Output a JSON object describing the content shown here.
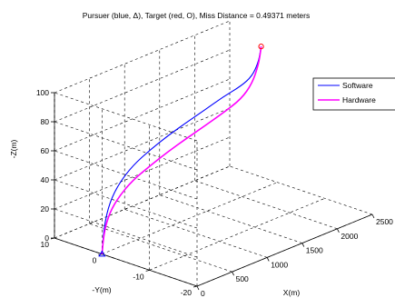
{
  "chart_data": {
    "type": "line",
    "title": "Pursuer (blue, Δ), Target (red, O), Miss Distance = 0.49371 meters",
    "xlabel": "X(m)",
    "ylabel": "-Y(m)",
    "zlabel": "-Z(m)",
    "xlim": [
      0,
      2500
    ],
    "ylim": [
      -20,
      10
    ],
    "zlim": [
      0,
      100
    ],
    "x_ticks": [
      "0",
      "500",
      "1000",
      "1500",
      "2000",
      "2500"
    ],
    "y_ticks": [
      "-20",
      "-10",
      "0",
      "10"
    ],
    "z_ticks": [
      "0",
      "20",
      "40",
      "60",
      "80",
      "100"
    ],
    "grid": true,
    "legend_position": "right",
    "series": [
      {
        "name": "Software",
        "color": "#0000ff",
        "points": [
          [
            0,
            0,
            0
          ],
          [
            50,
            0.3,
            18
          ],
          [
            150,
            0.6,
            32
          ],
          [
            300,
            0.8,
            42
          ],
          [
            500,
            0.9,
            50
          ],
          [
            750,
            0.9,
            56
          ],
          [
            1000,
            0.8,
            61
          ],
          [
            1250,
            0.7,
            65
          ],
          [
            1500,
            0.5,
            69
          ],
          [
            1750,
            0.4,
            73
          ],
          [
            2000,
            0.2,
            76
          ],
          [
            2150,
            0.1,
            80
          ],
          [
            2230,
            0,
            88
          ],
          [
            2260,
            0,
            95
          ],
          [
            2270,
            0,
            98
          ]
        ]
      },
      {
        "name": "Hardware",
        "color": "#ff00ff",
        "points": [
          [
            0,
            0,
            0
          ],
          [
            50,
            0.3,
            14
          ],
          [
            150,
            0.6,
            25
          ],
          [
            300,
            0.8,
            33
          ],
          [
            500,
            0.9,
            40
          ],
          [
            750,
            0.9,
            45
          ],
          [
            1000,
            0.8,
            50
          ],
          [
            1250,
            0.7,
            54
          ],
          [
            1500,
            0.5,
            58
          ],
          [
            1750,
            0.4,
            62
          ],
          [
            2000,
            0.2,
            67
          ],
          [
            2150,
            0.1,
            75
          ],
          [
            2230,
            0,
            86
          ],
          [
            2260,
            0,
            94
          ],
          [
            2270,
            0,
            98
          ]
        ]
      }
    ],
    "markers": [
      {
        "shape": "triangle",
        "color": "#0000ff",
        "point": [
          0,
          0,
          0
        ]
      },
      {
        "shape": "circle",
        "color": "#ff0000",
        "point": [
          2270,
          0,
          98
        ]
      }
    ]
  }
}
